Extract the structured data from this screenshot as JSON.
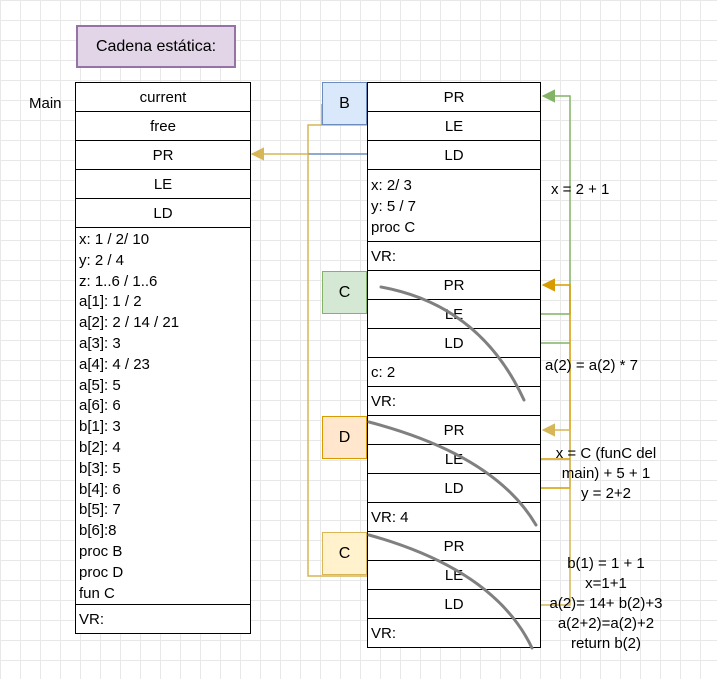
{
  "title": "Cadena estática:",
  "main": {
    "label": "Main",
    "header_cells": [
      "current",
      "free",
      "PR",
      "LE",
      "LD"
    ],
    "vars": [
      "x: 1 / 2/ 10",
      "y: 2 / 4",
      "z: 1..6 / 1..6",
      "a[1]: 1 / 2",
      "a[2]: 2 / 14 / 21",
      "a[3]: 3",
      "a[4]: 4 / 23",
      "a[5]: 5",
      "a[6]: 6",
      "b[1]: 3",
      "b[2]: 4",
      "b[3]: 5",
      "b[4]: 6",
      "b[5]: 7",
      "b[6]:8",
      "proc B",
      "proc D",
      "fun C"
    ],
    "vr": "VR:"
  },
  "frames": [
    {
      "tag": "B",
      "cells": [
        "PR",
        "LE",
        "LD"
      ],
      "vars": [
        "x: 2/ 3",
        "y: 5 / 7",
        "proc C"
      ],
      "vr": "VR:"
    },
    {
      "tag": "C",
      "cells": [
        "PR",
        "LE",
        "LD"
      ],
      "vars": [
        "c: 2"
      ],
      "vr": "VR:"
    },
    {
      "tag": "D",
      "cells": [
        "PR",
        "LE",
        "LD"
      ],
      "vars": [],
      "vr": "VR: 4"
    },
    {
      "tag": "C",
      "cells": [
        "PR",
        "LE",
        "LD"
      ],
      "vars": [],
      "vr": "VR:"
    }
  ],
  "annotations": {
    "b": "x = 2 + 1",
    "c": "a(2) = a(2) * 7",
    "d": [
      "x = C (funC del",
      "main) + 5 + 1",
      "y = 2+2"
    ],
    "c2": [
      "b(1) = 1 + 1",
      "x=1+1",
      "a(2)= 14+ b(2)+3",
      "a(2+2)=a(2)+2",
      "return b(2)"
    ]
  },
  "colors": {
    "blue": "#6c8ebf",
    "green": "#82b366",
    "orange": "#d79b00",
    "yellow": "#d6b656",
    "strike": "#808080"
  }
}
